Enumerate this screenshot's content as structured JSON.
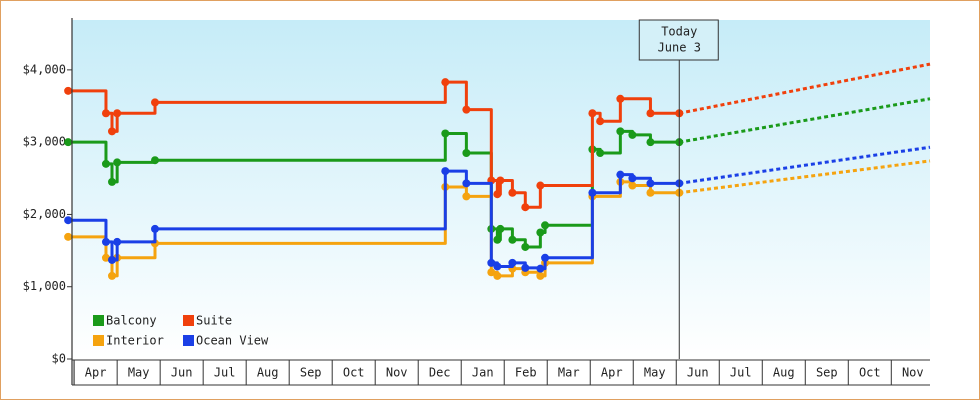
{
  "chart_data": {
    "type": "step-line",
    "xlim": [
      -0.05,
      19.9
    ],
    "xticks": [
      {
        "value": 0.5,
        "label": "Apr"
      },
      {
        "value": 1.5,
        "label": "May"
      },
      {
        "value": 2.5,
        "label": "Jun"
      },
      {
        "value": 3.5,
        "label": "Jul"
      },
      {
        "value": 4.5,
        "label": "Aug"
      },
      {
        "value": 5.5,
        "label": "Sep"
      },
      {
        "value": 6.5,
        "label": "Oct"
      },
      {
        "value": 7.5,
        "label": "Nov"
      },
      {
        "value": 8.5,
        "label": "Dec"
      },
      {
        "value": 9.5,
        "label": "Jan"
      },
      {
        "value": 10.5,
        "label": "Feb"
      },
      {
        "value": 11.5,
        "label": "Mar"
      },
      {
        "value": 12.5,
        "label": "Apr"
      },
      {
        "value": 13.5,
        "label": "May"
      },
      {
        "value": 14.5,
        "label": "Jun"
      },
      {
        "value": 15.5,
        "label": "Jul"
      },
      {
        "value": 16.5,
        "label": "Aug"
      },
      {
        "value": 17.5,
        "label": "Sep"
      },
      {
        "value": 18.5,
        "label": "Oct"
      },
      {
        "value": 19.5,
        "label": "Nov"
      }
    ],
    "ylim": [
      0,
      4690
    ],
    "yticks": [
      {
        "value": 0,
        "label": "$0"
      },
      {
        "value": 1000,
        "label": "$1,000"
      },
      {
        "value": 2000,
        "label": "$2,000"
      },
      {
        "value": 3000,
        "label": "$3,000"
      },
      {
        "value": 4000,
        "label": "$4,000"
      }
    ],
    "legend": "bottom-left",
    "annotation": {
      "x": 14.07,
      "lines": [
        "Today",
        "June 3"
      ]
    },
    "forecast_x": 19.9,
    "series": [
      {
        "name": "Balcony",
        "color": "#1a9a1a",
        "x": [
          -0.14,
          0.74,
          0.88,
          1.0,
          1.88,
          8.63,
          9.12,
          9.7,
          9.84,
          9.91,
          10.19,
          10.49,
          10.84,
          10.95,
          12.05,
          12.23,
          12.7,
          12.98,
          13.4,
          14.07
        ],
        "values": [
          3000,
          2700,
          2450,
          2720,
          2750,
          3120,
          2850,
          1800,
          1650,
          1800,
          1650,
          1550,
          1750,
          1850,
          2900,
          2850,
          3150,
          3100,
          3000,
          3000
        ],
        "forecast": 3600
      },
      {
        "name": "Suite",
        "color": "#f0400c",
        "x": [
          -0.14,
          0.74,
          0.88,
          1.0,
          1.88,
          8.63,
          9.12,
          9.7,
          9.84,
          9.91,
          10.19,
          10.49,
          10.84,
          12.05,
          12.23,
          12.7,
          13.4,
          14.07
        ],
        "values": [
          3710,
          3400,
          3150,
          3400,
          3550,
          3830,
          3450,
          2470,
          2280,
          2470,
          2300,
          2100,
          2400,
          3400,
          3290,
          3600,
          3400,
          3400
        ],
        "forecast": 4080
      },
      {
        "name": "Interior",
        "color": "#f5a30f",
        "x": [
          -0.14,
          0.74,
          0.88,
          1.0,
          1.88,
          8.63,
          9.12,
          9.7,
          9.84,
          10.19,
          10.49,
          10.84,
          10.95,
          12.05,
          12.7,
          12.98,
          13.4,
          14.07
        ],
        "values": [
          1690,
          1400,
          1150,
          1400,
          1600,
          2380,
          2250,
          1200,
          1150,
          1250,
          1200,
          1150,
          1330,
          2250,
          2450,
          2400,
          2300,
          2300
        ],
        "forecast": 2740
      },
      {
        "name": "Ocean View",
        "color": "#1a3fe6",
        "x": [
          -0.14,
          0.74,
          0.88,
          1.0,
          1.88,
          8.63,
          9.12,
          9.7,
          9.84,
          10.19,
          10.49,
          10.84,
          10.95,
          12.05,
          12.7,
          12.98,
          13.4,
          14.07
        ],
        "values": [
          1920,
          1620,
          1370,
          1620,
          1800,
          2600,
          2430,
          1330,
          1280,
          1330,
          1260,
          1250,
          1400,
          2300,
          2550,
          2500,
          2430,
          2430
        ],
        "forecast": 2930
      }
    ]
  }
}
